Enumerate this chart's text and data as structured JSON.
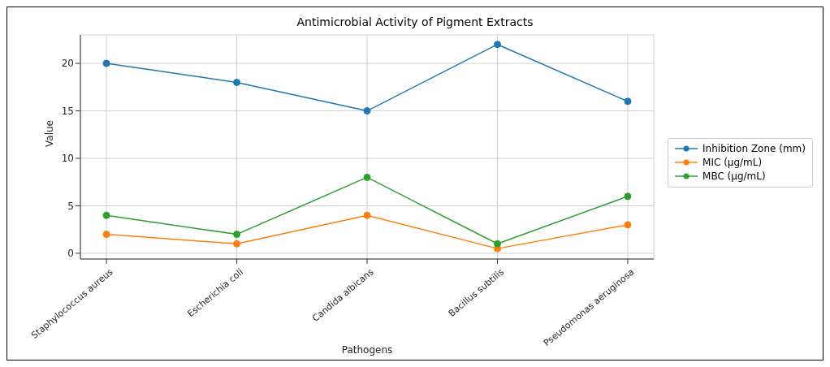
{
  "chart_data": {
    "type": "line",
    "title": "Antimicrobial Activity of Pigment Extracts",
    "xlabel": "Pathogens",
    "ylabel": "Value",
    "categories": [
      "Staphylococcus aureus",
      "Escherichia coli",
      "Candida albicans",
      "Bacillus subtilis",
      "Pseudomonas aeruginosa"
    ],
    "series": [
      {
        "name": "Inhibition Zone (mm)",
        "color": "#1f77b4",
        "values": [
          20,
          18,
          15,
          22,
          16
        ]
      },
      {
        "name": "MIC (µg/mL)",
        "color": "#ff7f0e",
        "values": [
          2,
          1,
          4,
          0.5,
          3
        ]
      },
      {
        "name": "MBC (µg/mL)",
        "color": "#2ca02c",
        "values": [
          4,
          2,
          8,
          1,
          6
        ]
      }
    ],
    "ylim": [
      -0.6,
      23
    ],
    "yticks": [
      0,
      5,
      10,
      15,
      20
    ],
    "grid": true,
    "legend": "right",
    "marker": "circle",
    "line_style": "solid"
  }
}
